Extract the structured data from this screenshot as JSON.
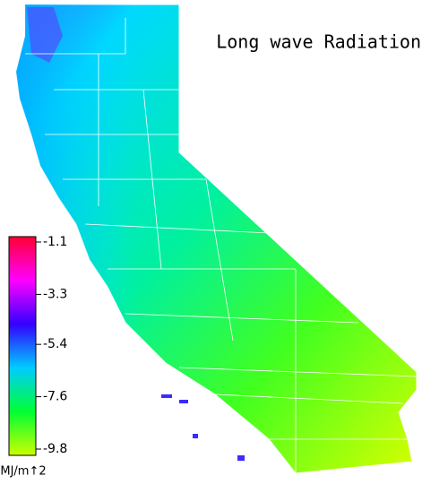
{
  "title": "Long wave Radiation",
  "colorbar": {
    "ticks": [
      -1.1,
      -3.3,
      -5.4,
      -7.6,
      -9.8
    ],
    "unit": "MJ/m↑2",
    "colors": [
      "#ff0033",
      "#ff00ff",
      "#3300ff",
      "#00ccff",
      "#00ff33",
      "#ccff00"
    ]
  }
}
